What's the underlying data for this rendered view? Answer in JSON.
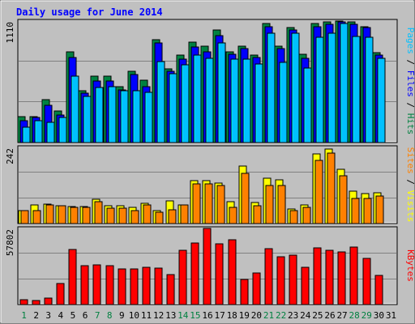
{
  "chart_data": {
    "type": "bar",
    "title": "Daily usage for June 2014",
    "categories": [
      "1",
      "2",
      "3",
      "4",
      "5",
      "6",
      "7",
      "8",
      "9",
      "10",
      "11",
      "12",
      "13",
      "14",
      "15",
      "16",
      "17",
      "18",
      "19",
      "20",
      "21",
      "22",
      "23",
      "24",
      "25",
      "26",
      "27",
      "28",
      "29",
      "30",
      "31"
    ],
    "weekend_categories": [
      "1",
      "7",
      "8",
      "14",
      "15",
      "21",
      "22",
      "28",
      "29"
    ],
    "panels": [
      {
        "id": "top",
        "max_label": "1110",
        "ymax": 1110,
        "right_labels": [
          {
            "text": "Pages",
            "color": "#00c0ff"
          },
          {
            "text": " / ",
            "color": "#000000"
          },
          {
            "text": "Files",
            "color": "#0000ff"
          },
          {
            "text": " / ",
            "color": "#000000"
          },
          {
            "text": "Hits",
            "color": "#008040"
          }
        ],
        "series": [
          {
            "name": "Hits",
            "color": "#008040",
            "values": [
              240,
              236,
              390,
              290,
              830,
              470,
              610,
              610,
              510,
              650,
              570,
              940,
              670,
              800,
              920,
              880,
              1030,
              830,
              880,
              800,
              1090,
              880,
              1050,
              810,
              1090,
              1100,
              1110,
              1100,
              1060,
              820,
              0
            ]
          },
          {
            "name": "Files",
            "color": "#0000ff",
            "values": [
              200,
              226,
              340,
              250,
              780,
              450,
              560,
              560,
              480,
              620,
              510,
              910,
              650,
              760,
              870,
              830,
              980,
              810,
              860,
              780,
              1060,
              860,
              1030,
              770,
              1060,
              1080,
              1100,
              1080,
              1050,
              800,
              0
            ]
          },
          {
            "name": "Pages",
            "color": "#00c0ff",
            "values": [
              140,
              200,
              185,
              230,
              605,
              420,
              500,
              510,
              470,
              470,
              460,
              740,
              630,
              710,
              800,
              770,
              910,
              760,
              760,
              720,
              1000,
              730,
              1000,
              680,
              960,
              1000,
              1090,
              970,
              960,
              770,
              0
            ]
          }
        ]
      },
      {
        "id": "mid",
        "max_label": "242",
        "ymax": 242,
        "right_labels": [
          {
            "text": "Sites",
            "color": "#ff8000"
          },
          {
            "text": " / ",
            "color": "#000000"
          },
          {
            "text": "Visits",
            "color": "#ffff00"
          }
        ],
        "series": [
          {
            "name": "Visits",
            "color": "#ffff00",
            "values": [
              40,
              58,
              62,
              57,
              55,
              55,
              76,
              57,
              56,
              52,
              64,
              42,
              72,
              60,
              136,
              136,
              130,
              70,
              184,
              66,
              144,
              140,
              46,
              60,
              221,
              237,
              172,
              102,
              95,
              97,
              0
            ]
          },
          {
            "name": "Sites",
            "color": "#ff8000",
            "values": [
              40,
              40,
              58,
              57,
              52,
              52,
              70,
              48,
              48,
              40,
              58,
              36,
              43,
              60,
              126,
              126,
              120,
              52,
              160,
              56,
              120,
              120,
              42,
              51,
              200,
              225,
              151,
              80,
              80,
              88,
              0
            ]
          }
        ]
      },
      {
        "id": "bot",
        "max_label": "57802",
        "ymax": 57802,
        "right_labels": [
          {
            "text": "KBytes",
            "color": "#ff0000"
          }
        ],
        "series": [
          {
            "name": "KBytes",
            "color": "#ff0000",
            "values": [
              3400,
              3200,
              5100,
              15900,
              42000,
              29500,
              30000,
              29800,
              26900,
              27300,
              28000,
              27600,
              22500,
              41000,
              46500,
              58000,
              46000,
              49500,
              19000,
              24000,
              42200,
              36300,
              37600,
              28200,
              43300,
              40900,
              40000,
              43400,
              35100,
              22300,
              0
            ]
          }
        ]
      }
    ]
  }
}
